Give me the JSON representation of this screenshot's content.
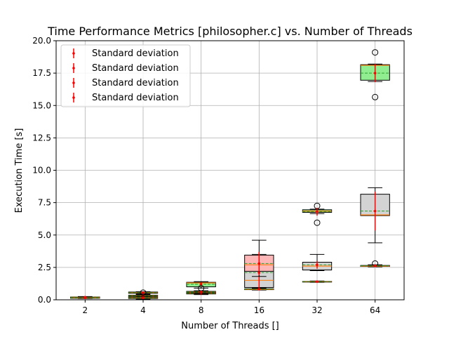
{
  "chart_data": {
    "type": "box",
    "title": "Time Performance Metrics [philosopher.c] vs. Number of Threads",
    "xlabel": "Number of Threads []",
    "ylabel": "Execution Time [s]",
    "categories": [
      "2",
      "4",
      "8",
      "16",
      "32",
      "64"
    ],
    "ylim": [
      0,
      20
    ],
    "yticks": [
      "0.0",
      "2.5",
      "5.0",
      "7.5",
      "10.0",
      "12.5",
      "15.0",
      "17.5",
      "20.0"
    ],
    "grid": true,
    "legend": {
      "position": "top-left",
      "entries": [
        "Standard deviation",
        "Standard deviation",
        "Standard deviation",
        "Standard deviation"
      ]
    },
    "colors": {
      "median": "#ff7f0e",
      "mean_line": "#2ca02c",
      "errorbar": "#ff0000",
      "grid": "#b0b0b0"
    },
    "series": [
      {
        "fill": "#d3d3d3",
        "boxes": [
          {
            "category": "2",
            "whislo": 0.1,
            "q1": 0.12,
            "med": 0.15,
            "mean": 0.15,
            "q3": 0.18,
            "whishi": 0.2,
            "fliers": [],
            "std": 0.03
          },
          {
            "category": "4",
            "whislo": 0.2,
            "q1": 0.25,
            "med": 0.3,
            "mean": 0.3,
            "q3": 0.35,
            "whishi": 0.4,
            "fliers": [],
            "std": 0.05
          },
          {
            "category": "8",
            "whislo": 0.4,
            "q1": 0.45,
            "med": 0.5,
            "mean": 0.5,
            "q3": 0.55,
            "whishi": 0.6,
            "fliers": [],
            "std": 0.05
          },
          {
            "category": "16",
            "whislo": 0.85,
            "q1": 0.95,
            "med": 1.5,
            "mean": 2.1,
            "q3": 2.7,
            "whishi": 4.6,
            "fliers": [],
            "std": 1.2
          },
          {
            "category": "32",
            "whislo": 2.25,
            "q1": 2.3,
            "med": 2.6,
            "mean": 2.7,
            "q3": 2.9,
            "whishi": 3.5,
            "fliers": [],
            "std": 0.3
          },
          {
            "category": "64",
            "whislo": 4.4,
            "q1": 6.5,
            "med": 6.55,
            "mean": 6.85,
            "q3": 8.15,
            "whishi": 8.65,
            "fliers": [
              2.8
            ],
            "std": 1.5
          }
        ]
      },
      {
        "fill": "#90ee90",
        "boxes": [
          {
            "category": "2",
            "whislo": 0.15,
            "q1": 0.17,
            "med": 0.2,
            "mean": 0.2,
            "q3": 0.22,
            "whishi": 0.25,
            "fliers": [],
            "std": 0.03
          },
          {
            "category": "4",
            "whislo": 0.45,
            "q1": 0.5,
            "med": 0.55,
            "mean": 0.55,
            "q3": 0.6,
            "whishi": 0.62,
            "fliers": [],
            "std": 0.05
          },
          {
            "category": "8",
            "whislo": 0.9,
            "q1": 1.0,
            "med": 1.3,
            "mean": 1.2,
            "q3": 1.35,
            "whishi": 1.4,
            "fliers": [],
            "std": 0.15
          },
          {
            "category": "16",
            "whislo": 0.75,
            "q1": 0.78,
            "med": 0.8,
            "mean": 0.82,
            "q3": 0.85,
            "whishi": 0.9,
            "fliers": [],
            "std": 0.05
          },
          {
            "category": "32",
            "whislo": 6.65,
            "q1": 6.75,
            "med": 6.85,
            "mean": 6.8,
            "q3": 6.95,
            "whishi": 7.0,
            "fliers": [
              7.25,
              5.95
            ],
            "std": 0.3
          },
          {
            "category": "64",
            "whislo": 16.85,
            "q1": 16.95,
            "med": 18.1,
            "mean": 17.5,
            "q3": 18.15,
            "whishi": 18.2,
            "fliers": [
              19.1,
              15.65
            ],
            "std": 0.7
          }
        ]
      },
      {
        "fill": "#ffb6b6",
        "boxes": [
          {
            "category": "2",
            "whislo": 0.1,
            "q1": 0.12,
            "med": 0.15,
            "mean": 0.15,
            "q3": 0.18,
            "whishi": 0.2,
            "fliers": [],
            "std": 0.03
          },
          {
            "category": "4",
            "whislo": 0.05,
            "q1": 0.1,
            "med": 0.15,
            "mean": 0.15,
            "q3": 0.2,
            "whishi": 0.25,
            "fliers": [
              0.55
            ],
            "std": 0.05
          },
          {
            "category": "8",
            "whislo": 0.5,
            "q1": 0.55,
            "med": 0.6,
            "mean": 0.6,
            "q3": 0.65,
            "whishi": 0.7,
            "fliers": [
              0.9
            ],
            "std": 0.05
          },
          {
            "category": "16",
            "whislo": 1.8,
            "q1": 2.2,
            "med": 2.7,
            "mean": 2.8,
            "q3": 3.45,
            "whishi": 3.5,
            "fliers": [],
            "std": 0.9
          },
          {
            "category": "32",
            "whislo": 1.35,
            "q1": 1.38,
            "med": 1.4,
            "mean": 1.4,
            "q3": 1.42,
            "whishi": 1.45,
            "fliers": [],
            "std": 0.05
          },
          {
            "category": "64",
            "whislo": 2.55,
            "q1": 2.58,
            "med": 2.6,
            "mean": 2.62,
            "q3": 2.65,
            "whishi": 2.7,
            "fliers": [],
            "std": 0.05
          }
        ]
      }
    ]
  }
}
